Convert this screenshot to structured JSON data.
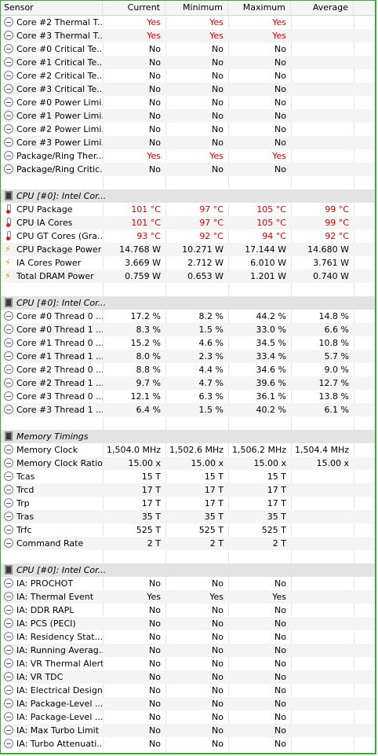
{
  "header": {
    "sensor": "Sensor",
    "current": "Current",
    "minimum": "Minimum",
    "maximum": "Maximum",
    "average": "Average"
  },
  "rows": [
    {
      "type": "sensor",
      "icon": "clock-icon",
      "name": "Core #2 Thermal T...",
      "cur": "Yes",
      "min": "Yes",
      "max": "Yes",
      "avg": "",
      "red": true
    },
    {
      "type": "sensor",
      "icon": "clock-icon",
      "name": "Core #3 Thermal T...",
      "cur": "Yes",
      "min": "Yes",
      "max": "Yes",
      "avg": "",
      "red": true
    },
    {
      "type": "sensor",
      "icon": "clock-icon",
      "name": "Core #0 Critical Te...",
      "cur": "No",
      "min": "No",
      "max": "No",
      "avg": ""
    },
    {
      "type": "sensor",
      "icon": "clock-icon",
      "name": "Core #1 Critical Te...",
      "cur": "No",
      "min": "No",
      "max": "No",
      "avg": ""
    },
    {
      "type": "sensor",
      "icon": "clock-icon",
      "name": "Core #2 Critical Te...",
      "cur": "No",
      "min": "No",
      "max": "No",
      "avg": ""
    },
    {
      "type": "sensor",
      "icon": "clock-icon",
      "name": "Core #3 Critical Te...",
      "cur": "No",
      "min": "No",
      "max": "No",
      "avg": ""
    },
    {
      "type": "sensor",
      "icon": "clock-icon",
      "name": "Core #0 Power Limi...",
      "cur": "No",
      "min": "No",
      "max": "No",
      "avg": ""
    },
    {
      "type": "sensor",
      "icon": "clock-icon",
      "name": "Core #1 Power Limi...",
      "cur": "No",
      "min": "No",
      "max": "No",
      "avg": ""
    },
    {
      "type": "sensor",
      "icon": "clock-icon",
      "name": "Core #2 Power Limi...",
      "cur": "No",
      "min": "No",
      "max": "No",
      "avg": ""
    },
    {
      "type": "sensor",
      "icon": "clock-icon",
      "name": "Core #3 Power Limi...",
      "cur": "No",
      "min": "No",
      "max": "No",
      "avg": ""
    },
    {
      "type": "sensor",
      "icon": "clock-icon",
      "name": "Package/Ring Ther...",
      "cur": "Yes",
      "min": "Yes",
      "max": "Yes",
      "avg": "",
      "red": true
    },
    {
      "type": "sensor",
      "icon": "clock-icon",
      "name": "Package/Ring Critic...",
      "cur": "No",
      "min": "No",
      "max": "No",
      "avg": ""
    },
    {
      "type": "blank"
    },
    {
      "type": "group",
      "name": "CPU [#0]: Intel Cor..."
    },
    {
      "type": "sensor",
      "icon": "thermometer-icon",
      "name": "CPU Package",
      "cur": "101 °C",
      "min": "97 °C",
      "max": "105 °C",
      "avg": "99 °C",
      "red": true
    },
    {
      "type": "sensor",
      "icon": "thermometer-icon",
      "name": "CPU IA Cores",
      "cur": "101 °C",
      "min": "97 °C",
      "max": "105 °C",
      "avg": "99 °C",
      "red": true
    },
    {
      "type": "sensor",
      "icon": "thermometer-icon",
      "name": "CPU GT Cores (Gra...",
      "cur": "93 °C",
      "min": "92 °C",
      "max": "94 °C",
      "avg": "92 °C",
      "red": true
    },
    {
      "type": "sensor",
      "icon": "bolt-icon",
      "name": "CPU Package Power",
      "cur": "14.768 W",
      "min": "10.271 W",
      "max": "17.144 W",
      "avg": "14.680 W"
    },
    {
      "type": "sensor",
      "icon": "bolt-icon",
      "name": "IA Cores Power",
      "cur": "3.669 W",
      "min": "2.712 W",
      "max": "6.010 W",
      "avg": "3.761 W"
    },
    {
      "type": "sensor",
      "icon": "bolt-icon",
      "name": "Total DRAM Power",
      "cur": "0.759 W",
      "min": "0.653 W",
      "max": "1.201 W",
      "avg": "0.740 W"
    },
    {
      "type": "blank"
    },
    {
      "type": "group",
      "name": "CPU [#0]: Intel Cor..."
    },
    {
      "type": "sensor",
      "icon": "clock-icon",
      "name": "Core #0 Thread 0 ...",
      "cur": "17.2 %",
      "min": "8.2 %",
      "max": "44.2 %",
      "avg": "14.8 %"
    },
    {
      "type": "sensor",
      "icon": "clock-icon",
      "name": "Core #0 Thread 1 ...",
      "cur": "8.3 %",
      "min": "1.5 %",
      "max": "33.0 %",
      "avg": "6.6 %"
    },
    {
      "type": "sensor",
      "icon": "clock-icon",
      "name": "Core #1 Thread 0 ...",
      "cur": "15.2 %",
      "min": "4.6 %",
      "max": "34.5 %",
      "avg": "10.8 %"
    },
    {
      "type": "sensor",
      "icon": "clock-icon",
      "name": "Core #1 Thread 1 ...",
      "cur": "8.0 %",
      "min": "2.3 %",
      "max": "33.4 %",
      "avg": "5.7 %"
    },
    {
      "type": "sensor",
      "icon": "clock-icon",
      "name": "Core #2 Thread 0 ...",
      "cur": "8.8 %",
      "min": "4.4 %",
      "max": "34.6 %",
      "avg": "9.0 %"
    },
    {
      "type": "sensor",
      "icon": "clock-icon",
      "name": "Core #2 Thread 1 ...",
      "cur": "9.7 %",
      "min": "4.7 %",
      "max": "39.6 %",
      "avg": "12.7 %"
    },
    {
      "type": "sensor",
      "icon": "clock-icon",
      "name": "Core #3 Thread 0 ...",
      "cur": "12.1 %",
      "min": "6.3 %",
      "max": "36.1 %",
      "avg": "13.8 %"
    },
    {
      "type": "sensor",
      "icon": "clock-icon",
      "name": "Core #3 Thread 1 ...",
      "cur": "6.4 %",
      "min": "1.5 %",
      "max": "40.2 %",
      "avg": "6.1 %"
    },
    {
      "type": "blank"
    },
    {
      "type": "group",
      "name": "Memory Timings"
    },
    {
      "type": "sensor",
      "icon": "clock-icon",
      "name": "Memory Clock",
      "cur": "1,504.0 MHz",
      "min": "1,502.6 MHz",
      "max": "1,506.2 MHz",
      "avg": "1,504.4 MHz"
    },
    {
      "type": "sensor",
      "icon": "clock-icon",
      "name": "Memory Clock Ratio",
      "cur": "15.00 x",
      "min": "15.00 x",
      "max": "15.00 x",
      "avg": "15.00 x"
    },
    {
      "type": "sensor",
      "icon": "clock-icon",
      "name": "Tcas",
      "cur": "15 T",
      "min": "15 T",
      "max": "15 T",
      "avg": ""
    },
    {
      "type": "sensor",
      "icon": "clock-icon",
      "name": "Trcd",
      "cur": "17 T",
      "min": "17 T",
      "max": "17 T",
      "avg": ""
    },
    {
      "type": "sensor",
      "icon": "clock-icon",
      "name": "Trp",
      "cur": "17 T",
      "min": "17 T",
      "max": "17 T",
      "avg": ""
    },
    {
      "type": "sensor",
      "icon": "clock-icon",
      "name": "Tras",
      "cur": "35 T",
      "min": "35 T",
      "max": "35 T",
      "avg": ""
    },
    {
      "type": "sensor",
      "icon": "clock-icon",
      "name": "Trfc",
      "cur": "525 T",
      "min": "525 T",
      "max": "525 T",
      "avg": ""
    },
    {
      "type": "sensor",
      "icon": "clock-icon",
      "name": "Command Rate",
      "cur": "2 T",
      "min": "2 T",
      "max": "2 T",
      "avg": ""
    },
    {
      "type": "blank"
    },
    {
      "type": "group",
      "name": "CPU [#0]: Intel Cor..."
    },
    {
      "type": "sensor",
      "icon": "clock-icon",
      "name": "IA: PROCHOT",
      "cur": "No",
      "min": "No",
      "max": "No",
      "avg": ""
    },
    {
      "type": "sensor",
      "icon": "clock-icon",
      "name": "IA: Thermal Event",
      "cur": "Yes",
      "min": "Yes",
      "max": "Yes",
      "avg": ""
    },
    {
      "type": "sensor",
      "icon": "clock-icon",
      "name": "IA: DDR RAPL",
      "cur": "No",
      "min": "No",
      "max": "No",
      "avg": ""
    },
    {
      "type": "sensor",
      "icon": "clock-icon",
      "name": "IA: PCS (PECI)",
      "cur": "No",
      "min": "No",
      "max": "No",
      "avg": ""
    },
    {
      "type": "sensor",
      "icon": "clock-icon",
      "name": "IA: Residency Stat...",
      "cur": "No",
      "min": "No",
      "max": "No",
      "avg": ""
    },
    {
      "type": "sensor",
      "icon": "clock-icon",
      "name": "IA: Running Averag...",
      "cur": "No",
      "min": "No",
      "max": "No",
      "avg": ""
    },
    {
      "type": "sensor",
      "icon": "clock-icon",
      "name": "IA: VR Thermal Alert",
      "cur": "No",
      "min": "No",
      "max": "No",
      "avg": ""
    },
    {
      "type": "sensor",
      "icon": "clock-icon",
      "name": "IA: VR TDC",
      "cur": "No",
      "min": "No",
      "max": "No",
      "avg": ""
    },
    {
      "type": "sensor",
      "icon": "clock-icon",
      "name": "IA: Electrical Design...",
      "cur": "No",
      "min": "No",
      "max": "No",
      "avg": ""
    },
    {
      "type": "sensor",
      "icon": "clock-icon",
      "name": "IA: Package-Level ...",
      "cur": "No",
      "min": "No",
      "max": "No",
      "avg": ""
    },
    {
      "type": "sensor",
      "icon": "clock-icon",
      "name": "IA: Package-Level ...",
      "cur": "No",
      "min": "No",
      "max": "No",
      "avg": ""
    },
    {
      "type": "sensor",
      "icon": "clock-icon",
      "name": "IA: Max Turbo Limit",
      "cur": "No",
      "min": "No",
      "max": "No",
      "avg": ""
    },
    {
      "type": "sensor",
      "icon": "clock-icon",
      "name": "IA: Turbo Attenuati...",
      "cur": "No",
      "min": "No",
      "max": "No",
      "avg": ""
    }
  ]
}
